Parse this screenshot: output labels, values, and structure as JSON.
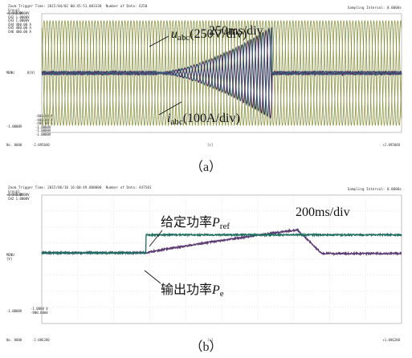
{
  "chart_data": [
    {
      "type": "line",
      "panel": "a",
      "header": {
        "trigger": "Zoom Trigger Time: 2015/04/02 00:45:51.083330",
        "points": "Number of Data: 6250",
        "group": "Group1",
        "sampling": "Sampling Interval: 0.0000s"
      },
      "channels": [
        "CH1 1.0000V",
        "CH2 1.0000V",
        "CH3 1.0000V",
        "CH4 400.00 A",
        "CH5 400.00 A",
        "CH6 400.00 A"
      ],
      "level_top": "+1.0000V",
      "level_mid": "0[V]",
      "level_bot": "-1.0000V",
      "side_label": "MENU",
      "bottom_channels": [
        "-400.00 A",
        "-400.00 A",
        "-400.00 A",
        "-1.0000V",
        "-1.0000V",
        "-1.0000V"
      ],
      "foot_left": "No. 0000",
      "foot_start": "-2.095040",
      "foot_mid": "[s]",
      "foot_end": "+2.095040",
      "annotation_voltage": {
        "symbol": "u",
        "subscript": "abc",
        "scale": "(250V/div)"
      },
      "annotation_current": {
        "symbol": "i",
        "subscript": "abc",
        "scale": "(100A/div)"
      },
      "time_div": "250ms/div",
      "caption": "（a）",
      "series": [
        {
          "role": "voltage",
          "color": "#8a8a30",
          "cycles": 40,
          "amplitude": 0.88
        },
        {
          "role": "current",
          "color": "#2c3d5c",
          "oscillation_start": 0.32,
          "oscillation_end": 0.64,
          "peak": 0.78
        }
      ]
    },
    {
      "type": "line",
      "panel": "b",
      "header": {
        "trigger": "Zoom Trigger Time: 2015/06/10 16:00:49.000000",
        "points": "Number of Data: 447501",
        "group": "Group1",
        "sampling": "Sampling Interval: 0.0000s"
      },
      "channels": [
        "CH1 1.0000V",
        "CH2 1.0000V"
      ],
      "level_top": "+1.0000V",
      "level_mid": "[V]",
      "level_bot": "-1.0000V",
      "side_label": "MENU",
      "bottom_channels": [
        "-1.0000 V",
        "-900.00mV"
      ],
      "foot_left": "No. 0000",
      "foot_start": "-2.086280",
      "foot_mid": "[s]",
      "foot_end": "+1.086280",
      "annotation_ref": {
        "text": "给定功率",
        "symbol": "P",
        "subscript": "ref"
      },
      "annotation_out": {
        "text": "输出功率",
        "symbol": "P",
        "subscript": "e"
      },
      "time_div": "200ms/div",
      "caption": "（b）",
      "series": [
        {
          "role": "reference",
          "color": "#1f6e60",
          "low_level": 0.55,
          "high_level": 0.69,
          "step_at": 0.29
        },
        {
          "role": "output",
          "color": "#5a3a70",
          "peak_at": 0.71,
          "peak": 0.73,
          "settle_at": 0.78
        }
      ]
    }
  ]
}
